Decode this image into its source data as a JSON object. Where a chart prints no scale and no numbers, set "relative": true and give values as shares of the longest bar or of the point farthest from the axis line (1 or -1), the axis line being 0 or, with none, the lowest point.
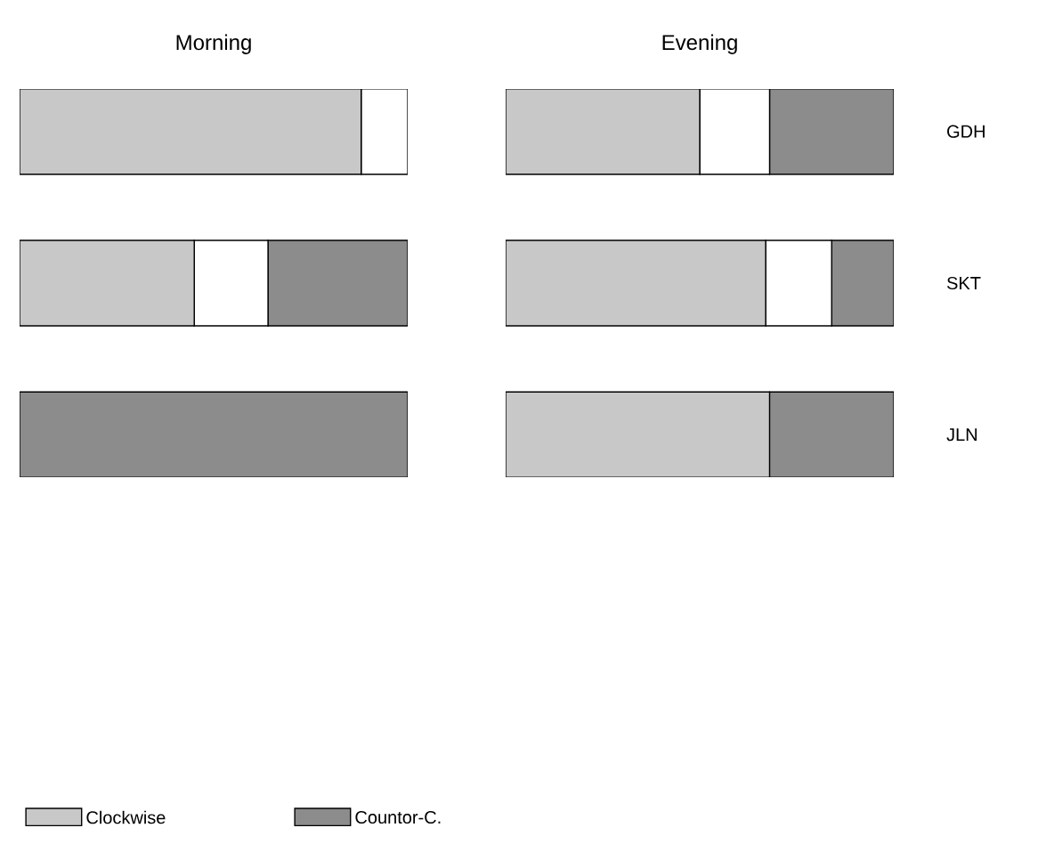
{
  "chart_data": [
    {
      "type": "bar",
      "orientation": "horizontal",
      "stacked": true,
      "relative": true,
      "title": "Morning",
      "categories": [
        null,
        null,
        null
      ],
      "tick_labels": false,
      "legend": "bottom",
      "series": [
        {
          "name": "Clockwise",
          "color": "#c8c8c8",
          "values": [
            0.88,
            0.45,
            0
          ]
        },
        {
          "color": "#ffffff",
          "values": [
            0.12,
            0.19,
            0
          ]
        },
        {
          "name": "Countor-C.",
          "color": "#8c8c8c",
          "values": [
            0,
            0.36,
            1
          ]
        }
      ]
    },
    {
      "type": "bar",
      "orientation": "horizontal",
      "stacked": true,
      "relative": true,
      "title": "Evening",
      "categories": [
        "GDH",
        "SKT",
        "JLN"
      ],
      "tick_labels": "y",
      "series": [
        {
          "color": "#c8c8c8",
          "values": [
            0.5,
            0.67,
            0.68
          ]
        },
        {
          "color": "#ffffff",
          "values": [
            0.18,
            0.17,
            0
          ]
        },
        {
          "color": "#8c8c8c",
          "values": [
            0.32,
            0.16,
            0.32
          ]
        }
      ]
    }
  ]
}
